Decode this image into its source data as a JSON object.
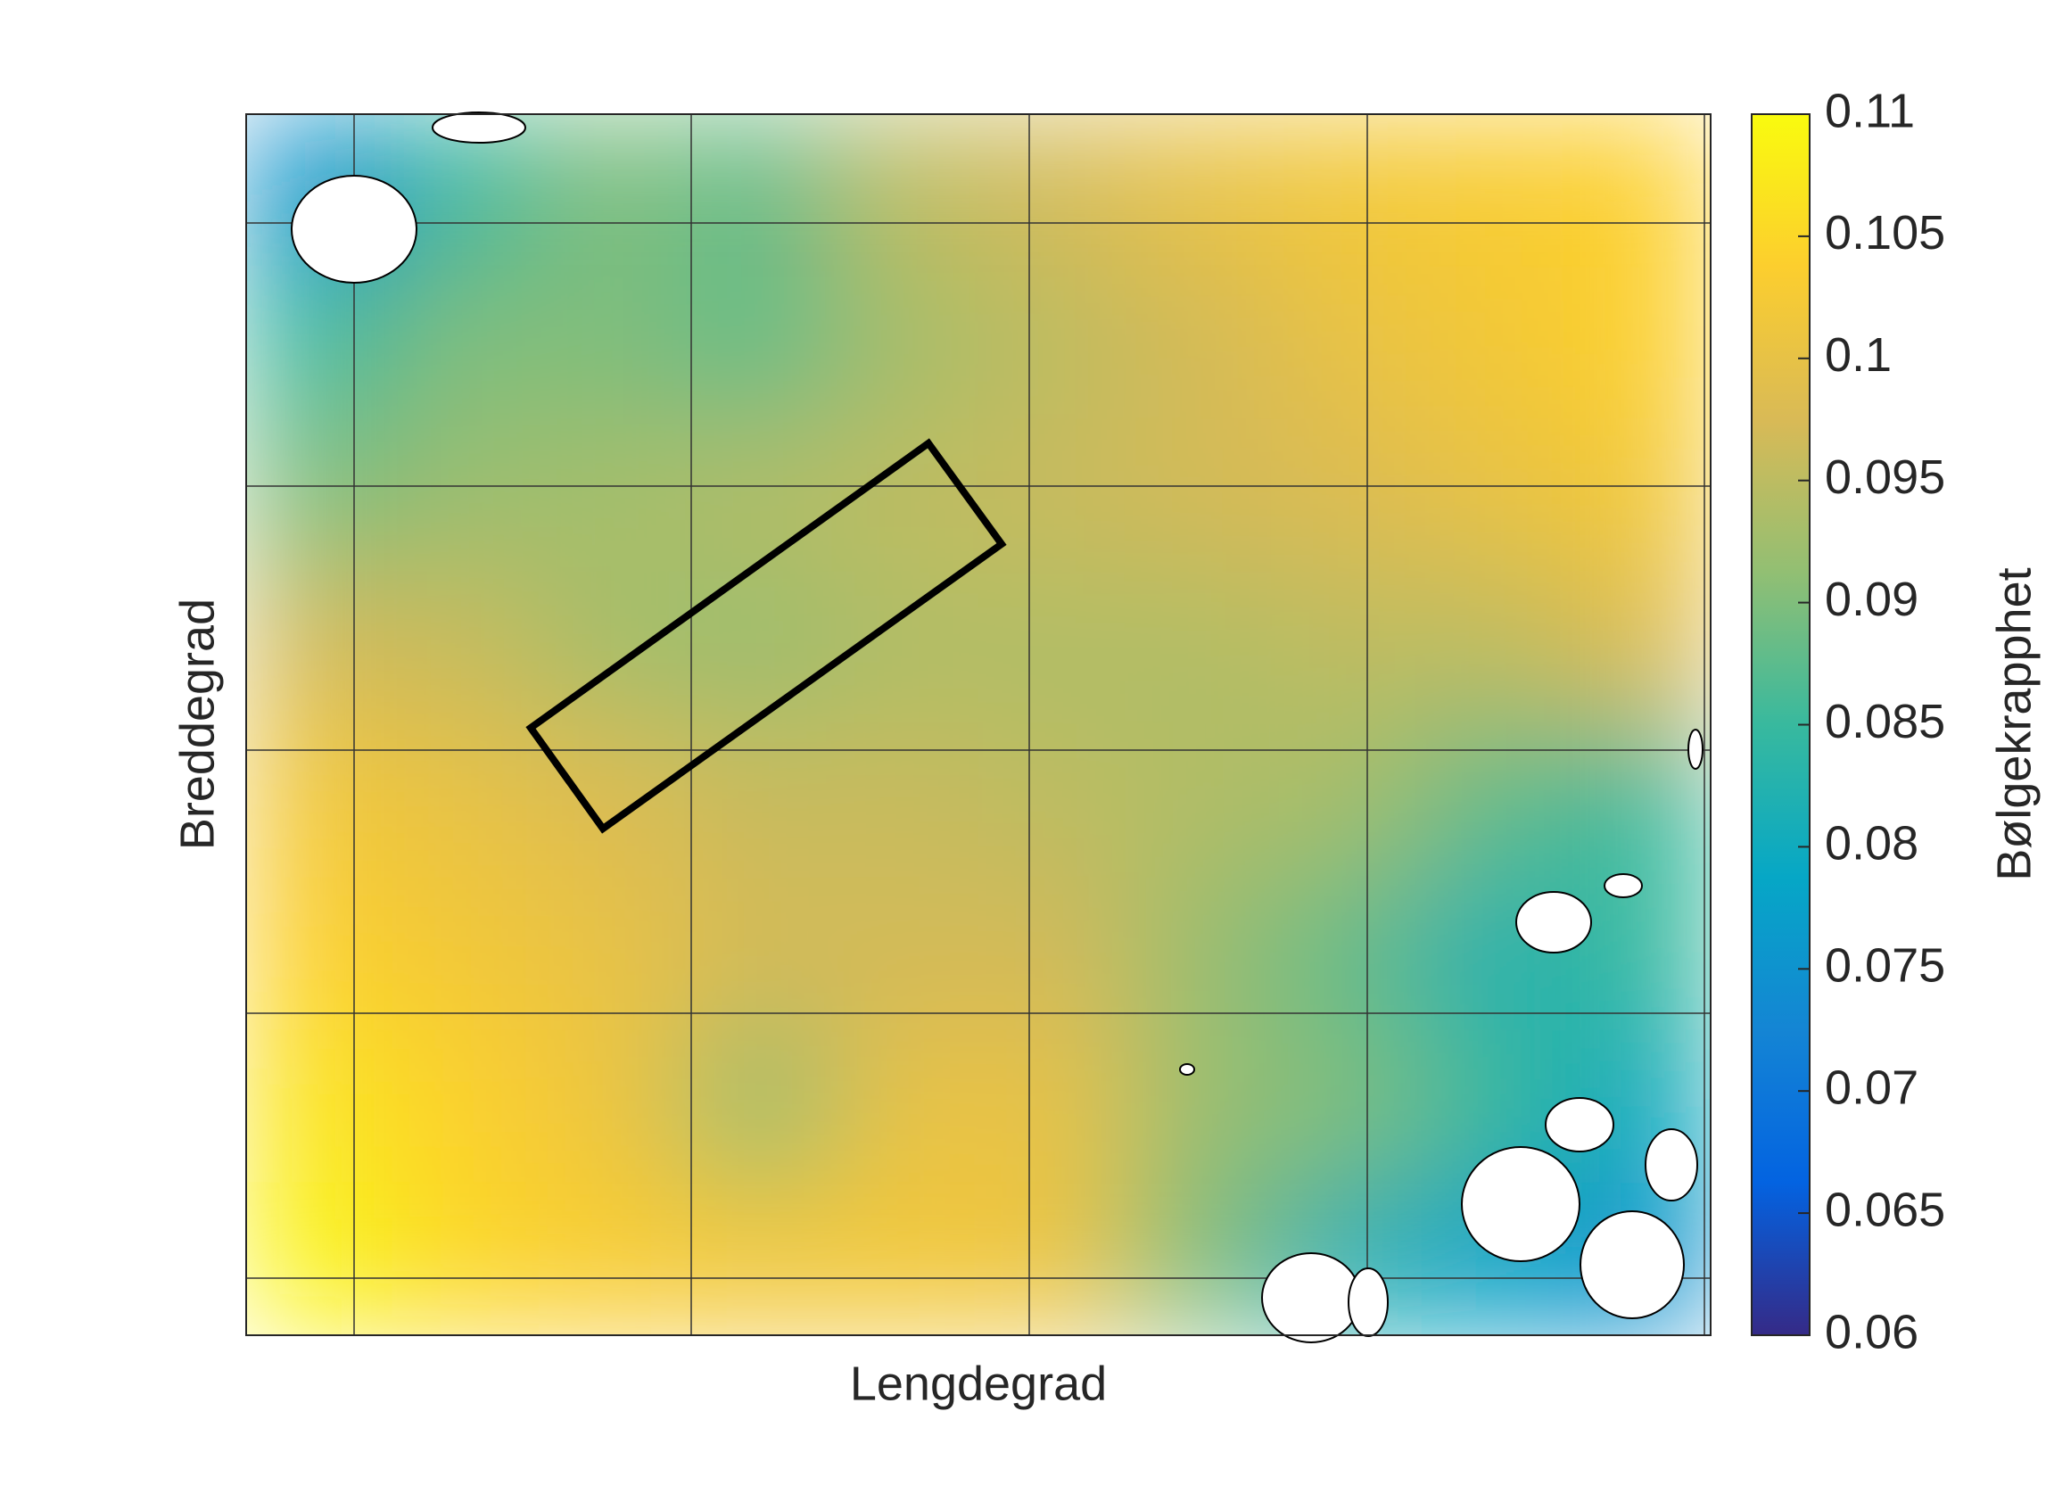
{
  "chart_data": {
    "type": "heatmap",
    "xlabel": "Lengdegrad",
    "ylabel": "Breddegrad",
    "colorbar_label": "Bølgekrapphet",
    "clim": [
      0.06,
      0.11
    ],
    "cticks": [
      0.06,
      0.065,
      0.07,
      0.075,
      0.08,
      0.085,
      0.09,
      0.095,
      0.1,
      0.105,
      0.11
    ],
    "colormap": [
      "#352a87",
      "#0363e1",
      "#1485d4",
      "#06a7c6",
      "#38b99e",
      "#92bf73",
      "#d9ba56",
      "#fcce2e",
      "#f9fb0e"
    ],
    "grid": true,
    "z": [
      [
        0.075,
        0.085,
        0.09,
        0.088,
        0.095,
        0.097,
        0.1,
        0.102,
        0.103,
        0.104
      ],
      [
        0.085,
        0.09,
        0.09,
        0.088,
        0.093,
        0.095,
        0.097,
        0.1,
        0.102,
        0.104
      ],
      [
        0.09,
        0.092,
        0.093,
        0.094,
        0.095,
        0.096,
        0.097,
        0.098,
        0.1,
        0.102
      ],
      [
        0.097,
        0.096,
        0.093,
        0.092,
        0.094,
        0.094,
        0.094,
        0.095,
        0.095,
        0.098
      ],
      [
        0.102,
        0.1,
        0.098,
        0.096,
        0.096,
        0.095,
        0.094,
        0.093,
        0.088,
        0.085
      ],
      [
        0.104,
        0.102,
        0.1,
        0.097,
        0.097,
        0.097,
        0.092,
        0.088,
        0.082,
        0.085
      ],
      [
        0.107,
        0.104,
        0.101,
        0.092,
        0.1,
        0.1,
        0.092,
        0.09,
        0.085,
        0.08
      ],
      [
        0.109,
        0.105,
        0.103,
        0.102,
        0.102,
        0.101,
        0.09,
        0.082,
        0.078,
        0.075
      ]
    ]
  }
}
